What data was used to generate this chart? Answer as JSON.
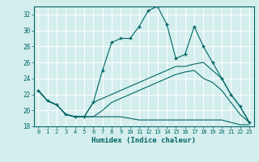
{
  "title": "",
  "xlabel": "Humidex (Indice chaleur)",
  "ylabel": "",
  "bg_color": "#d4eeed",
  "line_color": "#006666",
  "xlim": [
    -0.5,
    23.5
  ],
  "ylim": [
    18,
    33
  ],
  "yticks": [
    18,
    20,
    22,
    24,
    26,
    28,
    30,
    32
  ],
  "xticks": [
    0,
    1,
    2,
    3,
    4,
    5,
    6,
    7,
    8,
    9,
    10,
    11,
    12,
    13,
    14,
    15,
    16,
    17,
    18,
    19,
    20,
    21,
    22,
    23
  ],
  "series": [
    {
      "x": [
        0,
        1,
        2,
        3,
        4,
        5,
        6,
        7,
        8,
        9,
        10,
        11,
        12,
        13,
        14,
        15,
        16,
        17,
        18,
        19,
        20,
        21,
        22,
        23
      ],
      "y": [
        22.5,
        21.2,
        20.7,
        19.5,
        19.2,
        19.2,
        21.0,
        25.0,
        28.5,
        29.0,
        29.0,
        30.5,
        32.5,
        33.0,
        30.8,
        26.5,
        27.0,
        30.5,
        28.0,
        26.0,
        24.0,
        22.0,
        20.5,
        18.5
      ],
      "marker": "+"
    },
    {
      "x": [
        0,
        1,
        2,
        3,
        4,
        5,
        6,
        7,
        8,
        9,
        10,
        11,
        12,
        13,
        14,
        15,
        16,
        17,
        18,
        19,
        20,
        21,
        22,
        23
      ],
      "y": [
        22.5,
        21.2,
        20.7,
        19.5,
        19.2,
        19.2,
        21.0,
        21.5,
        22.0,
        22.5,
        23.0,
        23.5,
        24.0,
        24.5,
        25.0,
        25.5,
        25.5,
        25.8,
        26.0,
        25.0,
        24.0,
        22.0,
        20.5,
        18.5
      ],
      "marker": null
    },
    {
      "x": [
        0,
        1,
        2,
        3,
        4,
        5,
        6,
        7,
        8,
        9,
        10,
        11,
        12,
        13,
        14,
        15,
        16,
        17,
        18,
        19,
        20,
        21,
        22,
        23
      ],
      "y": [
        22.5,
        21.2,
        20.7,
        19.5,
        19.2,
        19.2,
        19.2,
        19.2,
        19.2,
        19.2,
        19.0,
        18.8,
        18.8,
        18.8,
        18.8,
        18.8,
        18.8,
        18.8,
        18.8,
        18.8,
        18.8,
        18.5,
        18.2,
        18.2
      ],
      "marker": null
    },
    {
      "x": [
        0,
        1,
        2,
        3,
        4,
        5,
        6,
        7,
        8,
        9,
        10,
        11,
        12,
        13,
        14,
        15,
        16,
        17,
        18,
        19,
        20,
        21,
        22,
        23
      ],
      "y": [
        22.5,
        21.2,
        20.7,
        19.5,
        19.2,
        19.2,
        19.2,
        20.0,
        21.0,
        21.5,
        22.0,
        22.5,
        23.0,
        23.5,
        24.0,
        24.5,
        24.8,
        25.0,
        24.0,
        23.5,
        22.5,
        21.0,
        19.5,
        18.5
      ],
      "marker": null
    }
  ]
}
